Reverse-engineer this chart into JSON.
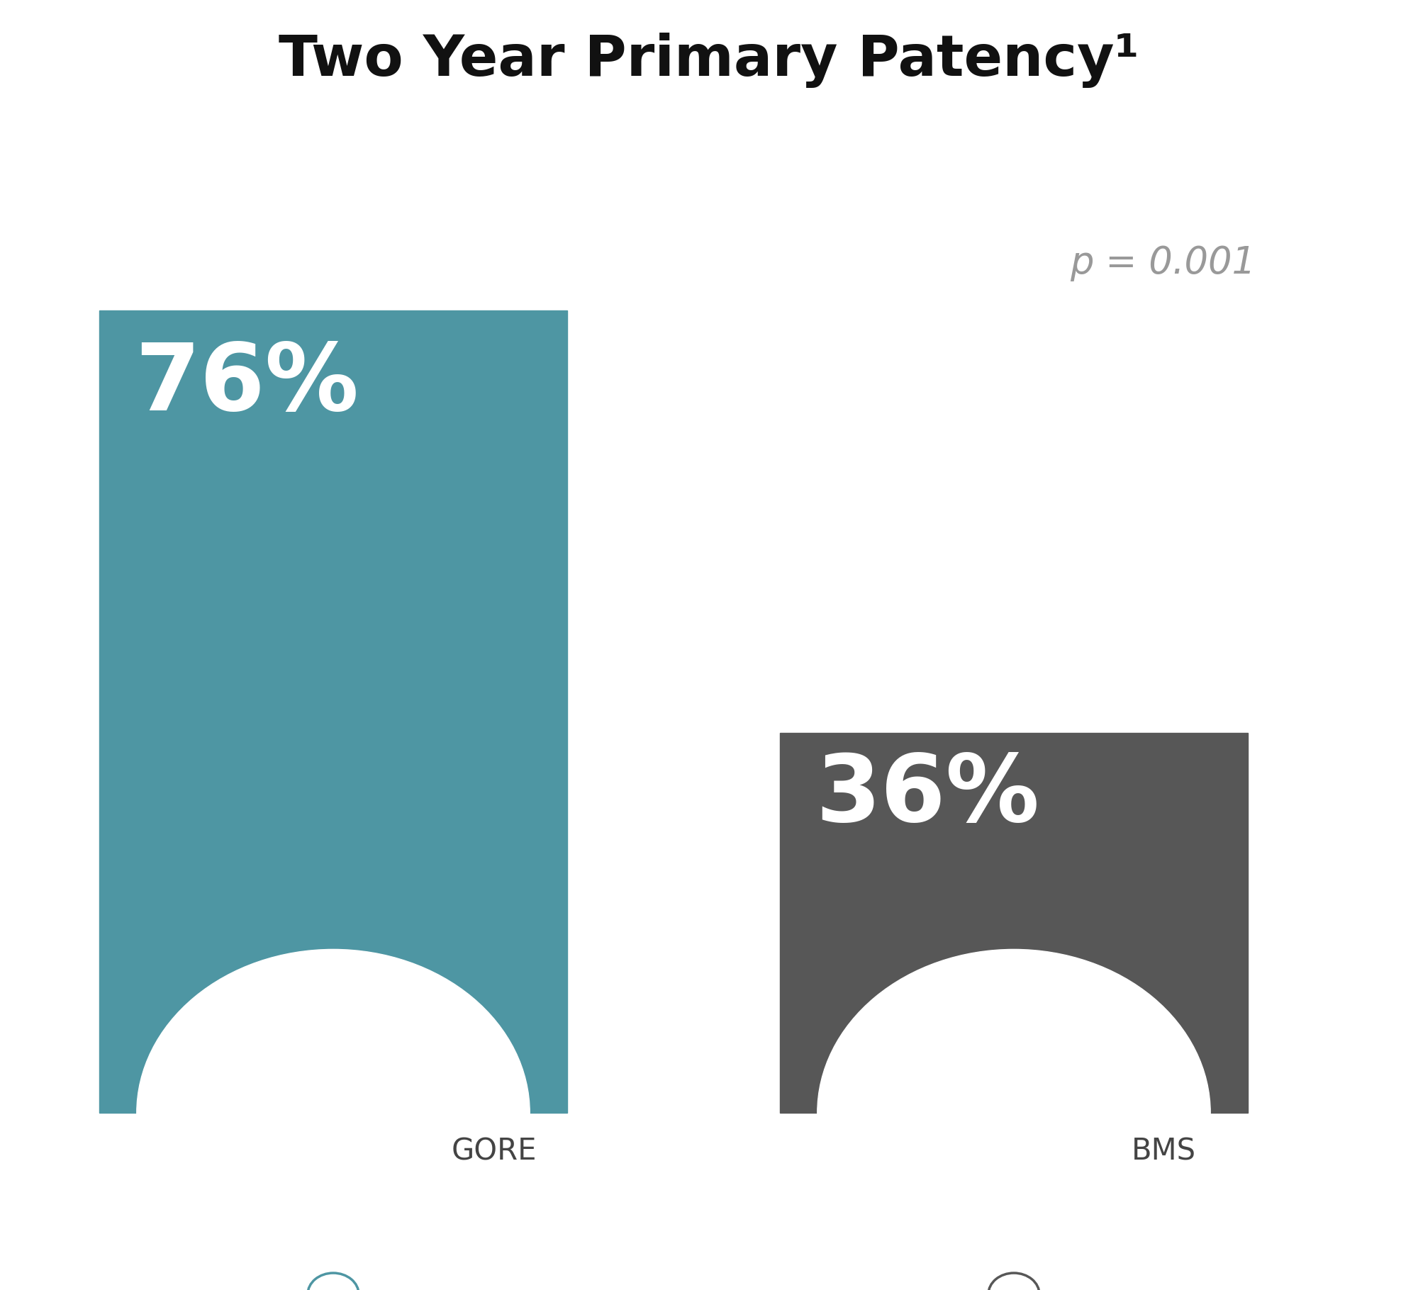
{
  "title": "Two Year Primary Patency¹",
  "title_bg_color": "#b5b5b5",
  "title_text_color": "#111111",
  "title_fontsize": 58,
  "bg_color": "#ffffff",
  "bar1_value": 76,
  "bar2_value": 36,
  "bar1_color": "#4e96a3",
  "bar2_color": "#575757",
  "bar1_label": "GORE",
  "bar2_label": "BMS",
  "label_fontsize": 30,
  "value_fontsize": 95,
  "value_color": "#ffffff",
  "p_value_text": "p = 0.001",
  "p_value_fontsize": 38,
  "p_value_color": "#999999",
  "magnifier_color1": "#4e96a3",
  "magnifier_color2": "#575757"
}
